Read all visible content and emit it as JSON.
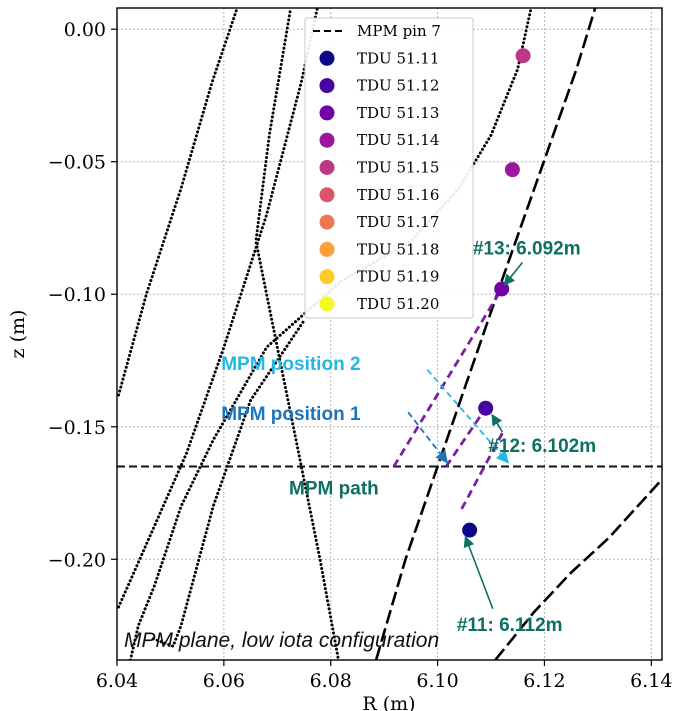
{
  "chart_data": {
    "type": "scatter",
    "caption": "MPM plane, low iota configuration",
    "xlabel": "R (m)",
    "ylabel": "z (m)",
    "xlim": [
      6.04,
      6.142
    ],
    "ylim": [
      -0.238,
      0.008
    ],
    "x_ticks": [
      "6.04",
      "6.06",
      "6.08",
      "6.10",
      "6.12",
      "6.14"
    ],
    "x_tick_values": [
      6.04,
      6.06,
      6.08,
      6.1,
      6.12,
      6.14
    ],
    "y_ticks": [
      "0.00",
      "−0.05",
      "−0.10",
      "−0.15",
      "−0.20"
    ],
    "y_tick_values": [
      0.0,
      -0.05,
      -0.1,
      -0.15,
      -0.2
    ],
    "grid": true,
    "legend_position": "top-center",
    "legend": [
      {
        "label": "MPM pin 7",
        "style": "dashed",
        "color": "#000000"
      },
      {
        "label": "TDU 51.11",
        "color": "#0d0887"
      },
      {
        "label": "TDU 51.12",
        "color": "#46039f"
      },
      {
        "label": "TDU 51.13",
        "color": "#7201a8"
      },
      {
        "label": "TDU 51.14",
        "color": "#9c179e"
      },
      {
        "label": "TDU 51.15",
        "color": "#bd3786"
      },
      {
        "label": "TDU 51.16",
        "color": "#d8576b"
      },
      {
        "label": "TDU 51.17",
        "color": "#ed7953"
      },
      {
        "label": "TDU 51.18",
        "color": "#fb9f3a"
      },
      {
        "label": "TDU 51.19",
        "color": "#fdca26"
      },
      {
        "label": "TDU 51.20",
        "color": "#f0f921"
      }
    ],
    "mpm_path_z": -0.165,
    "tdu_points": [
      {
        "name": "TDU 51.11",
        "R": 6.106,
        "z": -0.189,
        "color": "#0d0887"
      },
      {
        "name": "TDU 51.12",
        "R": 6.109,
        "z": -0.143,
        "color": "#46039f"
      },
      {
        "name": "TDU 51.13",
        "R": 6.112,
        "z": -0.098,
        "color": "#7201a8"
      },
      {
        "name": "TDU 51.14",
        "R": 6.114,
        "z": -0.053,
        "color": "#9c179e"
      },
      {
        "name": "TDU 51.15",
        "R": 6.116,
        "z": -0.01,
        "color": "#bd3786"
      }
    ],
    "projection_lines": [
      {
        "from": [
          6.0918,
          -0.165
        ],
        "to": [
          6.112,
          -0.098
        ]
      },
      {
        "from": [
          6.1016,
          -0.165
        ],
        "to": [
          6.109,
          -0.143
        ]
      },
      {
        "from": [
          6.1045,
          -0.181
        ],
        "to": [
          6.1125,
          -0.151
        ]
      }
    ],
    "position_arrows": [
      {
        "name": "MPM position 1",
        "color": "#1c74bb",
        "from": [
          6.0945,
          -0.1445
        ],
        "to": [
          6.1018,
          -0.1635
        ]
      },
      {
        "name": "MPM position 2",
        "color": "#23b7e5",
        "from": [
          6.0981,
          -0.1285
        ],
        "to": [
          6.1132,
          -0.1635
        ]
      }
    ],
    "annotations": [
      {
        "text": "#13: 6.092m",
        "color": "#0e7062",
        "R": 6.1066,
        "z": -0.085,
        "arrow_to": [
          6.1125,
          -0.0965
        ]
      },
      {
        "text": "#12: 6.102m",
        "color": "#0e7062",
        "R": 6.1095,
        "z": -0.1595,
        "arrow_to": [
          6.1102,
          -0.1455
        ]
      },
      {
        "text": "#11: 6.112m",
        "color": "#0e7062",
        "R": 6.1036,
        "z": -0.227,
        "arrow_to": [
          6.1052,
          -0.1915
        ]
      },
      {
        "text": "MPM position 2",
        "color": "#23b7e5",
        "R": 6.0595,
        "z": -0.1285
      },
      {
        "text": "MPM position 1",
        "color": "#1c74bb",
        "R": 6.0595,
        "z": -0.1475
      },
      {
        "text": "MPM path",
        "color": "#0e7062",
        "R": 6.0722,
        "z": -0.1755
      }
    ],
    "field_line_traces": [
      {
        "style": "dotted",
        "points": [
          [
            6.0403,
            -0.138
          ],
          [
            6.0455,
            -0.1
          ],
          [
            6.052,
            -0.06
          ],
          [
            6.0578,
            -0.02
          ],
          [
            6.0625,
            0.008
          ]
        ]
      },
      {
        "style": "dotted",
        "points": [
          [
            6.0403,
            -0.218
          ],
          [
            6.046,
            -0.192
          ],
          [
            6.053,
            -0.16
          ],
          [
            6.06,
            -0.12
          ],
          [
            6.068,
            -0.07
          ],
          [
            6.0745,
            -0.02
          ],
          [
            6.0775,
            0.008
          ]
        ]
      },
      {
        "style": "dotted",
        "points": [
          [
            6.0815,
            -0.2385
          ],
          [
            6.078,
            -0.2
          ],
          [
            6.074,
            -0.16
          ],
          [
            6.07,
            -0.12
          ],
          [
            6.066,
            -0.08
          ],
          [
            6.0685,
            -0.04
          ],
          [
            6.0725,
            0.008
          ]
        ]
      },
      {
        "style": "dotted",
        "points": [
          [
            6.0425,
            -0.238
          ],
          [
            6.044,
            -0.225
          ],
          [
            6.047,
            -0.21
          ],
          [
            6.052,
            -0.18
          ],
          [
            6.058,
            -0.155
          ],
          [
            6.068,
            -0.12
          ],
          [
            6.082,
            -0.095
          ],
          [
            6.095,
            -0.08
          ],
          [
            6.104,
            -0.06
          ],
          [
            6.11,
            -0.04
          ],
          [
            6.115,
            -0.015
          ],
          [
            6.1175,
            0.008
          ]
        ]
      },
      {
        "style": "dotted",
        "points": [
          [
            6.0468,
            -0.23
          ],
          [
            6.0505,
            -0.2328
          ],
          [
            6.052,
            -0.225
          ],
          [
            6.058,
            -0.18
          ],
          [
            6.065,
            -0.14
          ],
          [
            6.075,
            -0.11
          ]
        ]
      },
      {
        "style": "dashed",
        "points": [
          [
            6.0885,
            -0.238
          ],
          [
            6.094,
            -0.2
          ],
          [
            6.1,
            -0.165
          ],
          [
            6.106,
            -0.13
          ],
          [
            6.112,
            -0.095
          ],
          [
            6.119,
            -0.055
          ],
          [
            6.126,
            -0.015
          ],
          [
            6.1295,
            0.008
          ]
        ]
      },
      {
        "style": "dashed",
        "points": [
          [
            6.1108,
            -0.238
          ],
          [
            6.118,
            -0.22
          ],
          [
            6.125,
            -0.205
          ],
          [
            6.132,
            -0.192
          ],
          [
            6.1415,
            -0.171
          ]
        ]
      }
    ]
  }
}
